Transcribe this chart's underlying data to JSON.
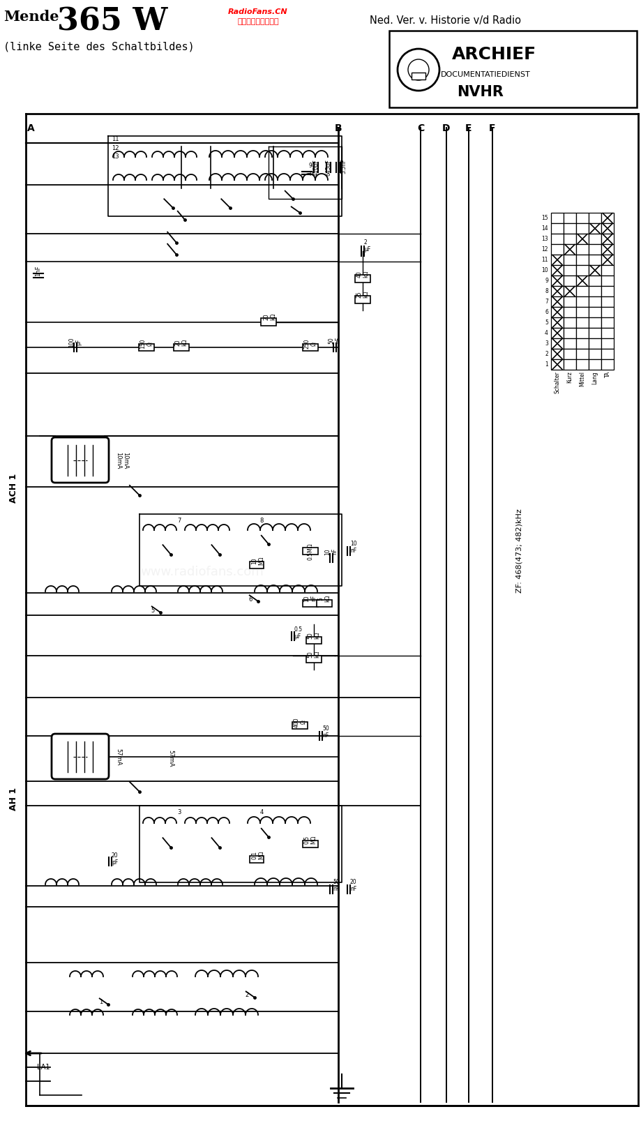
{
  "bg_color": "#ffffff",
  "title_mende": "Mende",
  "title_model": "365 W",
  "subtitle": "(linke Seite des Schaltbildes)",
  "top_right": "Ned. Ver. v. Historie v/d Radio",
  "watermark_line1": "RadioFans.CN",
  "watermark_line2": "收音机爱好者资料库",
  "archief_text": "ARCHIEF",
  "archief_sub": "DOCUMENTATIEDIENST",
  "archief_nvhr": "NVHR",
  "label_A": "A",
  "label_B": "B",
  "label_C": "C",
  "label_D": "D",
  "label_E": "E",
  "label_F": "F",
  "label_ACH1": "ACH 1",
  "label_AH1": "AH 1",
  "zf_label": "ZF: 468(473; 482)kHz",
  "schalter_label": "Schalter",
  "kurz_label": "Kurz",
  "mittel_label": "Mittel",
  "lang_label": "Lang",
  "ta_label": "TA",
  "fig_width": 9.2,
  "fig_height": 16.2,
  "fig_dpi": 100
}
